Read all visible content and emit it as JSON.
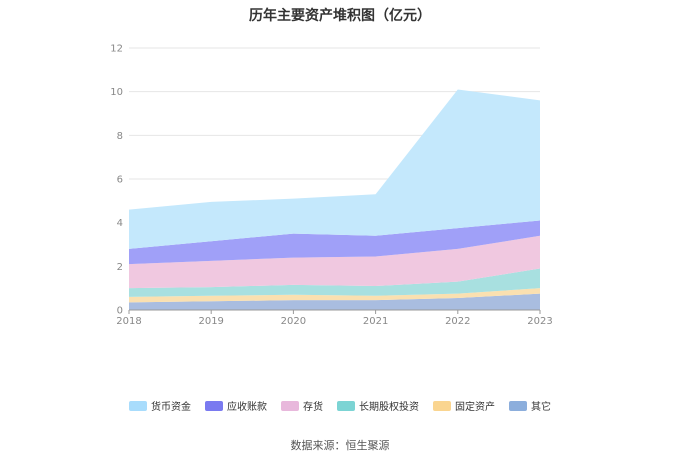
{
  "chart_data": {
    "type": "area",
    "stacked": true,
    "title": "历年主要资产堆积图（亿元）",
    "x": [
      "2018",
      "2019",
      "2020",
      "2021",
      "2022",
      "2023"
    ],
    "ylim": [
      0,
      12
    ],
    "yticks": [
      0,
      2,
      4,
      6,
      8,
      10,
      12
    ],
    "grid": true,
    "legend_position": "bottom",
    "series": [
      {
        "name": "其它",
        "color": "#a9bde0",
        "values": [
          0.35,
          0.4,
          0.45,
          0.45,
          0.55,
          0.75
        ]
      },
      {
        "name": "固定资产",
        "color": "#fae0b0",
        "values": [
          0.25,
          0.25,
          0.25,
          0.2,
          0.2,
          0.25
        ]
      },
      {
        "name": "长期股权投资",
        "color": "#a8e0e0",
        "values": [
          0.4,
          0.4,
          0.45,
          0.45,
          0.55,
          0.9
        ]
      },
      {
        "name": "存货",
        "color": "#f0c8e0",
        "values": [
          1.1,
          1.2,
          1.25,
          1.35,
          1.5,
          1.5
        ]
      },
      {
        "name": "应收账款",
        "color": "#a0a0f8",
        "values": [
          0.7,
          0.9,
          1.1,
          0.95,
          0.95,
          0.7
        ]
      },
      {
        "name": "货币资金",
        "color": "#c4e8fc",
        "values": [
          1.8,
          1.8,
          1.6,
          1.9,
          6.35,
          5.5
        ]
      }
    ]
  },
  "legend": {
    "items": [
      {
        "label": "货币资金",
        "color": "#a8dcfc"
      },
      {
        "label": "应收账款",
        "color": "#7a7af0"
      },
      {
        "label": "存货",
        "color": "#e8b8dc"
      },
      {
        "label": "长期股权投资",
        "color": "#7cd4d4"
      },
      {
        "label": "固定资产",
        "color": "#fad590"
      },
      {
        "label": "其它",
        "color": "#8caedc"
      }
    ]
  },
  "source": "数据来源：恒生聚源"
}
